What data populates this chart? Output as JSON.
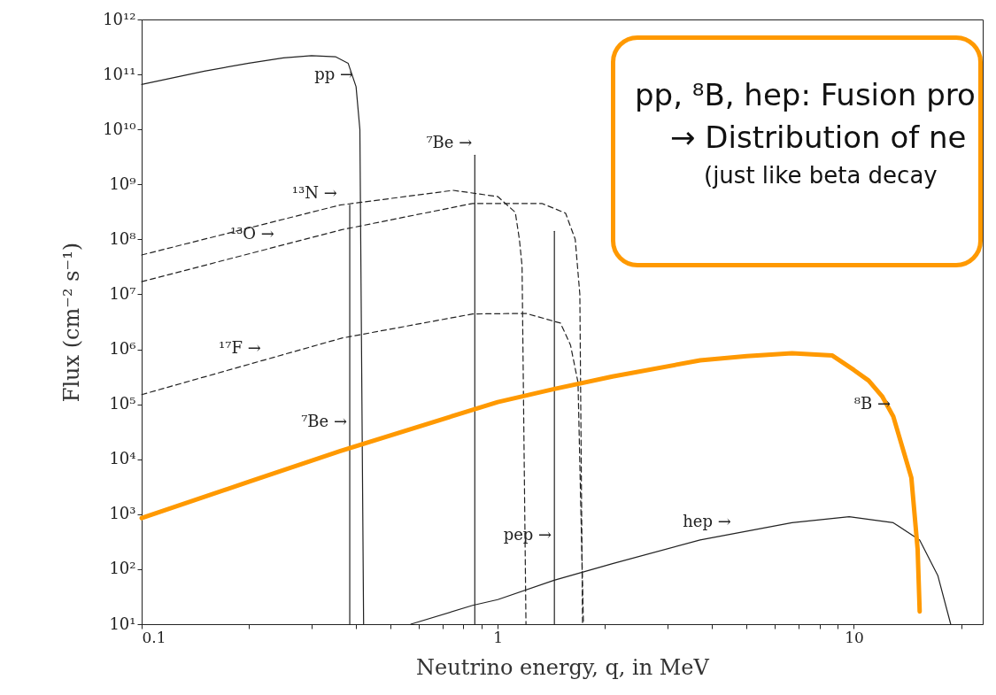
{
  "chart_data": {
    "type": "line",
    "xlabel": "Neutrino energy, q, in MeV",
    "ylabel": "Flux (cm⁻² s⁻¹)",
    "log": "xy",
    "grid": false,
    "marker": "none",
    "xlim": [
      0.1,
      23
    ],
    "ylim": [
      10,
      1000000000000.0
    ],
    "xticks": [
      0.1,
      {
        "value": 0.2,
        "label": null
      },
      {
        "value": 0.3,
        "label": null
      },
      {
        "value": 0.4,
        "label": null
      },
      {
        "value": 0.5,
        "label": null
      },
      {
        "value": 0.6,
        "label": null
      },
      {
        "value": 0.7,
        "label": null
      },
      {
        "value": 0.8,
        "label": null
      },
      {
        "value": 0.9,
        "label": null
      },
      1,
      {
        "value": 2,
        "label": null
      },
      {
        "value": 3,
        "label": null
      },
      {
        "value": 4,
        "label": null
      },
      {
        "value": 5,
        "label": null
      },
      {
        "value": 6,
        "label": null
      },
      {
        "value": 7,
        "label": null
      },
      {
        "value": 8,
        "label": null
      },
      {
        "value": 9,
        "label": null
      },
      10,
      {
        "value": 20,
        "label": null
      }
    ],
    "yticks": [
      {
        "value": 10,
        "label": "10¹"
      },
      {
        "value": 100,
        "label": "10²"
      },
      {
        "value": 1000,
        "label": "10³"
      },
      {
        "value": 10000,
        "label": "10⁴"
      },
      {
        "value": 100000,
        "label": "10⁵"
      },
      {
        "value": 1000000,
        "label": "10⁶"
      },
      {
        "value": 10000000,
        "label": "10⁷"
      },
      {
        "value": 100000000,
        "label": "10⁸"
      },
      {
        "value": 1000000000,
        "label": "10⁹"
      },
      {
        "value": 10000000000,
        "label": "10¹⁰"
      },
      {
        "value": 100000000000,
        "label": "10¹¹"
      },
      {
        "value": 1000000000000,
        "label": "10¹²"
      }
    ],
    "series": [
      {
        "color": "#222222",
        "line_style": "solid",
        "x": [
          0.1,
          0.15,
          0.2,
          0.25,
          0.3,
          0.35,
          0.38,
          0.4,
          0.41,
          0.42
        ],
        "values": [
          66000000000.0,
          115000000000.0,
          160000000000.0,
          200000000000.0,
          220000000000.0,
          210000000000.0,
          160000000000.0,
          60000000000.0,
          10000000000.0,
          10
        ]
      },
      {
        "color": "#222222",
        "line_style": "solid",
        "x": [
          0.384,
          0.384
        ],
        "values": [
          10,
          420000000.0
        ]
      },
      {
        "color": "#222222",
        "line_style": "solid",
        "x": [
          0.862,
          0.862
        ],
        "values": [
          10,
          3400000000.0
        ]
      },
      {
        "color": "#222222",
        "line_style": "solid",
        "x": [
          1.442,
          1.442
        ],
        "values": [
          10,
          140000000.0
        ]
      },
      {
        "color": "#222222",
        "line_style": "dashed",
        "x": [
          0.1,
          0.36,
          0.75,
          1.0,
          1.12,
          1.15,
          1.17,
          1.2
        ],
        "values": [
          52000000.0,
          420000000.0,
          780000000.0,
          600000000.0,
          310000000.0,
          100000000.0,
          33000000.0,
          10
        ]
      },
      {
        "color": "#222222",
        "line_style": "dashed",
        "x": [
          0.1,
          0.365,
          0.85,
          1.33,
          1.55,
          1.65,
          1.7,
          1.73
        ],
        "values": [
          17000000.0,
          150000000.0,
          450000000.0,
          450000000.0,
          300000000.0,
          100000000.0,
          10000000.0,
          10
        ]
      },
      {
        "color": "#222222",
        "line_style": "dashed",
        "x": [
          0.1,
          0.365,
          0.85,
          1.2,
          1.5,
          1.6,
          1.68,
          1.74
        ],
        "values": [
          150000.0,
          1600000.0,
          4400000.0,
          4500000.0,
          3000000.0,
          1200000.0,
          250000.0,
          10
        ]
      },
      {
        "color": "#222222",
        "line_style": "solid",
        "x": [
          0.57,
          0.85,
          1.0,
          1.44,
          2.1,
          3.7,
          6.7,
          9.7,
          12.9,
          15.3,
          17.2,
          18.7
        ],
        "values": [
          10,
          22,
          28,
          63,
          126,
          340,
          700,
          900,
          700,
          340,
          77,
          10
        ]
      },
      {
        "color": "#ff9900",
        "line_style": "solid",
        "x": [
          0.1,
          0.2,
          0.36,
          1.0,
          1.44,
          2.1,
          3.7,
          5.0,
          6.7,
          8.7,
          10,
          11,
          12,
          12.9,
          14.5,
          15.1,
          15.3
        ],
        "values": [
          850,
          3900,
          14000,
          110000,
          190000,
          320000,
          630000,
          750000,
          850000,
          770000,
          420000,
          270000,
          140000,
          60000,
          4600,
          230,
          17
        ]
      }
    ],
    "annotations": [
      {
        "text": "pp →",
        "x": 0.4,
        "y": 60000000000.0
      },
      {
        "text": "⁷Be →",
        "x": 0.862,
        "y": 3400000000.0
      },
      {
        "text": "¹³N →",
        "x": 0.36,
        "y": 420000000.0
      },
      {
        "text": "¹³O →",
        "x": 0.24,
        "y": 74000000.0
      },
      {
        "text": "¹⁷F →",
        "x": 0.22,
        "y": 630000.0
      },
      {
        "text": "⁷Be →",
        "x": 0.384,
        "y": 29000.0
      },
      {
        "text": "pep →",
        "x": 1.442,
        "y": 250
      },
      {
        "text": "hep →",
        "x": 4.6,
        "y": 440
      },
      {
        "text": "⁸B →",
        "x": 12.9,
        "y": 60000
      },
      "pp, ⁸B, hep: Fusion pro",
      "→ Distribution of ne",
      "(just like beta decay"
    ]
  }
}
